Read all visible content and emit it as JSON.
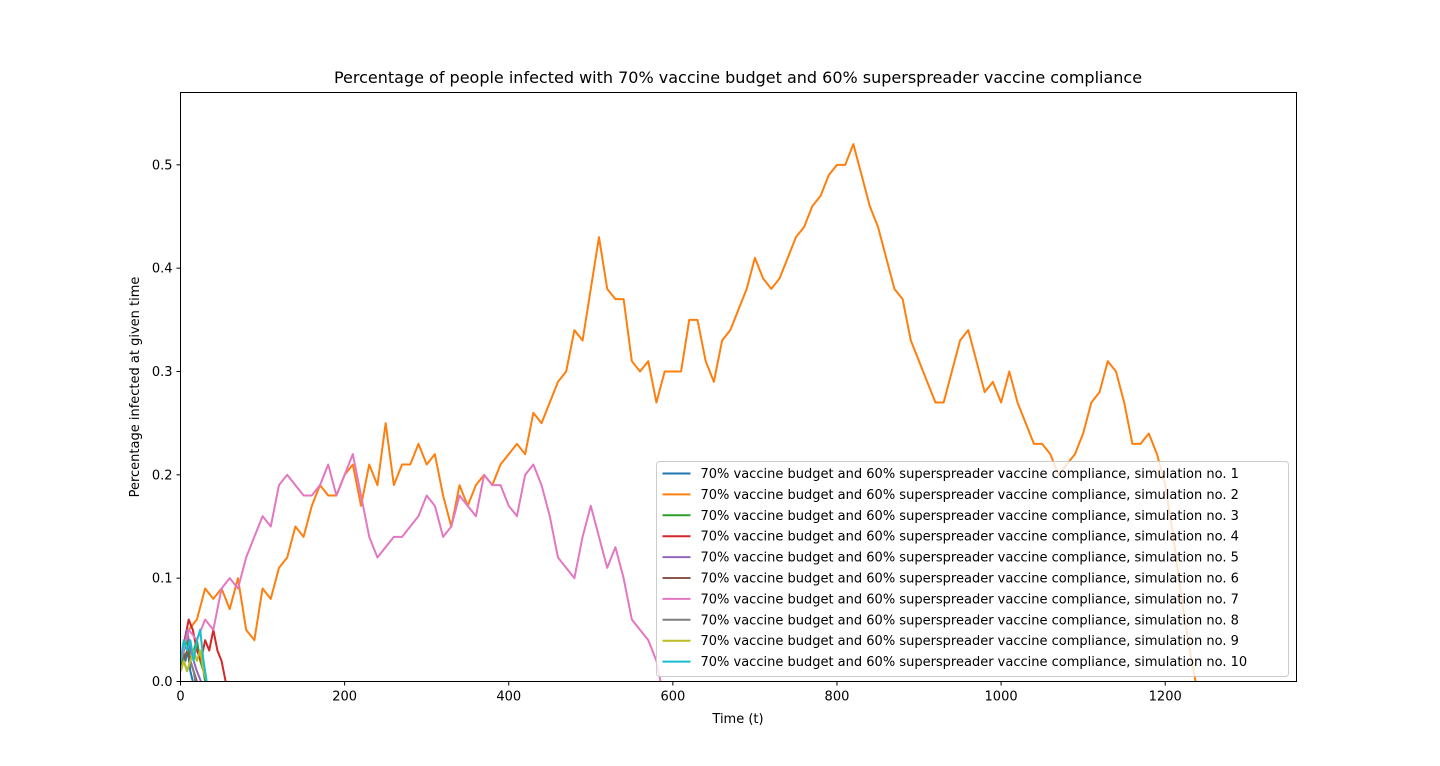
{
  "chart_data": {
    "type": "line",
    "title": "Percentage of people infected with 70% vaccine budget and 60% superspreader vaccine compliance",
    "xlabel": "Time (t)",
    "ylabel": "Percentage infected at given time",
    "xlim": [
      0,
      1360
    ],
    "ylim": [
      0,
      0.57
    ],
    "xticks": [
      0,
      200,
      400,
      600,
      800,
      1000,
      1200
    ],
    "yticks": [
      0.0,
      0.1,
      0.2,
      0.3,
      0.4,
      0.5
    ],
    "xtick_labels": [
      "0",
      "200",
      "400",
      "600",
      "800",
      "1000",
      "1200"
    ],
    "ytick_labels": [
      "0.0",
      "0.1",
      "0.2",
      "0.3",
      "0.4",
      "0.5"
    ],
    "grid": false,
    "legend_position": "lower-right",
    "series": [
      {
        "name": "70% vaccine budget and 60% superspreader vaccine compliance, simulation no. 1",
        "color": "#1f77b4",
        "x": [
          0,
          3,
          6,
          9,
          12,
          15
        ],
        "y": [
          0.01,
          0.03,
          0.02,
          0.03,
          0.01,
          0.0
        ]
      },
      {
        "name": "70% vaccine budget and 60% superspreader vaccine compliance, simulation no. 2",
        "color": "#ff7f0e",
        "x": [
          0,
          10,
          20,
          30,
          40,
          50,
          60,
          70,
          80,
          90,
          100,
          110,
          120,
          130,
          140,
          150,
          160,
          170,
          180,
          190,
          200,
          210,
          220,
          230,
          240,
          250,
          260,
          270,
          280,
          290,
          300,
          310,
          320,
          330,
          340,
          350,
          360,
          370,
          380,
          390,
          400,
          410,
          420,
          430,
          440,
          450,
          460,
          470,
          480,
          490,
          500,
          510,
          520,
          530,
          540,
          550,
          560,
          570,
          580,
          590,
          600,
          610,
          620,
          630,
          640,
          650,
          660,
          670,
          680,
          690,
          700,
          710,
          720,
          730,
          740,
          750,
          760,
          770,
          780,
          790,
          800,
          810,
          820,
          830,
          840,
          850,
          860,
          870,
          880,
          890,
          900,
          910,
          920,
          930,
          940,
          950,
          960,
          970,
          980,
          990,
          1000,
          1010,
          1020,
          1030,
          1040,
          1050,
          1060,
          1070,
          1080,
          1090,
          1100,
          1110,
          1120,
          1130,
          1140,
          1150,
          1160,
          1170,
          1180,
          1190,
          1200,
          1210,
          1220,
          1230,
          1237
        ],
        "y": [
          0.02,
          0.05,
          0.06,
          0.09,
          0.08,
          0.09,
          0.07,
          0.1,
          0.05,
          0.04,
          0.09,
          0.08,
          0.11,
          0.12,
          0.15,
          0.14,
          0.17,
          0.19,
          0.18,
          0.18,
          0.2,
          0.21,
          0.17,
          0.21,
          0.19,
          0.25,
          0.19,
          0.21,
          0.21,
          0.23,
          0.21,
          0.22,
          0.18,
          0.15,
          0.19,
          0.17,
          0.19,
          0.2,
          0.19,
          0.21,
          0.22,
          0.23,
          0.22,
          0.26,
          0.25,
          0.27,
          0.29,
          0.3,
          0.34,
          0.33,
          0.38,
          0.43,
          0.38,
          0.37,
          0.37,
          0.31,
          0.3,
          0.31,
          0.27,
          0.3,
          0.3,
          0.3,
          0.35,
          0.35,
          0.31,
          0.29,
          0.33,
          0.34,
          0.36,
          0.38,
          0.41,
          0.39,
          0.38,
          0.39,
          0.41,
          0.43,
          0.44,
          0.46,
          0.47,
          0.49,
          0.5,
          0.5,
          0.52,
          0.49,
          0.46,
          0.44,
          0.41,
          0.38,
          0.37,
          0.33,
          0.31,
          0.29,
          0.27,
          0.27,
          0.3,
          0.33,
          0.34,
          0.31,
          0.28,
          0.29,
          0.27,
          0.3,
          0.27,
          0.25,
          0.23,
          0.23,
          0.22,
          0.2,
          0.21,
          0.22,
          0.24,
          0.27,
          0.28,
          0.31,
          0.3,
          0.27,
          0.23,
          0.23,
          0.24,
          0.22,
          0.19,
          0.14,
          0.08,
          0.03,
          0.0
        ]
      },
      {
        "name": "70% vaccine budget and 60% superspreader vaccine compliance, simulation no. 3",
        "color": "#2ca02c",
        "x": [
          0,
          4,
          8,
          12,
          16,
          20,
          24,
          28,
          30
        ],
        "y": [
          0.01,
          0.03,
          0.04,
          0.02,
          0.03,
          0.04,
          0.02,
          0.01,
          0.0
        ]
      },
      {
        "name": "70% vaccine budget and 60% superspreader vaccine compliance, simulation no. 4",
        "color": "#d62728",
        "x": [
          0,
          5,
          10,
          15,
          20,
          25,
          30,
          35,
          40,
          45,
          50,
          55
        ],
        "y": [
          0.02,
          0.04,
          0.06,
          0.05,
          0.03,
          0.02,
          0.04,
          0.03,
          0.05,
          0.03,
          0.02,
          0.0
        ]
      },
      {
        "name": "70% vaccine budget and 60% superspreader vaccine compliance, simulation no. 5",
        "color": "#9467bd",
        "x": [
          0,
          4,
          8,
          12,
          16,
          20,
          25
        ],
        "y": [
          0.02,
          0.03,
          0.05,
          0.03,
          0.02,
          0.01,
          0.0
        ]
      },
      {
        "name": "70% vaccine budget and 60% superspreader vaccine compliance, simulation no. 6",
        "color": "#8c564b",
        "x": [
          0,
          4,
          8,
          12,
          16,
          20
        ],
        "y": [
          0.01,
          0.02,
          0.03,
          0.02,
          0.01,
          0.0
        ]
      },
      {
        "name": "70% vaccine budget and 60% superspreader vaccine compliance, simulation no. 7",
        "color": "#e377c2",
        "x": [
          0,
          10,
          20,
          30,
          40,
          50,
          60,
          70,
          80,
          90,
          100,
          110,
          120,
          130,
          140,
          150,
          160,
          170,
          180,
          190,
          200,
          210,
          220,
          230,
          240,
          250,
          260,
          270,
          280,
          290,
          300,
          310,
          320,
          330,
          340,
          350,
          360,
          370,
          380,
          390,
          400,
          410,
          420,
          430,
          440,
          450,
          460,
          470,
          480,
          490,
          500,
          510,
          520,
          530,
          540,
          550,
          560,
          570,
          580,
          585
        ],
        "y": [
          0.02,
          0.05,
          0.04,
          0.06,
          0.05,
          0.09,
          0.1,
          0.09,
          0.12,
          0.14,
          0.16,
          0.15,
          0.19,
          0.2,
          0.19,
          0.18,
          0.18,
          0.19,
          0.21,
          0.18,
          0.2,
          0.22,
          0.18,
          0.14,
          0.12,
          0.13,
          0.14,
          0.14,
          0.15,
          0.16,
          0.18,
          0.17,
          0.14,
          0.15,
          0.18,
          0.17,
          0.16,
          0.2,
          0.19,
          0.19,
          0.17,
          0.16,
          0.2,
          0.21,
          0.19,
          0.16,
          0.12,
          0.11,
          0.1,
          0.14,
          0.17,
          0.14,
          0.11,
          0.13,
          0.1,
          0.06,
          0.05,
          0.04,
          0.02,
          0.0
        ]
      },
      {
        "name": "70% vaccine budget and 60% superspreader vaccine compliance, simulation no. 8",
        "color": "#7f7f7f",
        "x": [
          0,
          4,
          8,
          12,
          16,
          18
        ],
        "y": [
          0.01,
          0.02,
          0.01,
          0.02,
          0.01,
          0.0
        ]
      },
      {
        "name": "70% vaccine budget and 60% superspreader vaccine compliance, simulation no. 9",
        "color": "#bcbd22",
        "x": [
          0,
          4,
          8,
          12,
          16,
          20,
          24,
          28,
          32
        ],
        "y": [
          0.01,
          0.02,
          0.01,
          0.02,
          0.03,
          0.02,
          0.03,
          0.01,
          0.0
        ]
      },
      {
        "name": "70% vaccine budget and 60% superspreader vaccine compliance, simulation no. 10",
        "color": "#17becf",
        "x": [
          0,
          4,
          8,
          12,
          16,
          20,
          24,
          28,
          32
        ],
        "y": [
          0.02,
          0.04,
          0.03,
          0.04,
          0.02,
          0.04,
          0.05,
          0.02,
          0.0
        ]
      }
    ]
  }
}
